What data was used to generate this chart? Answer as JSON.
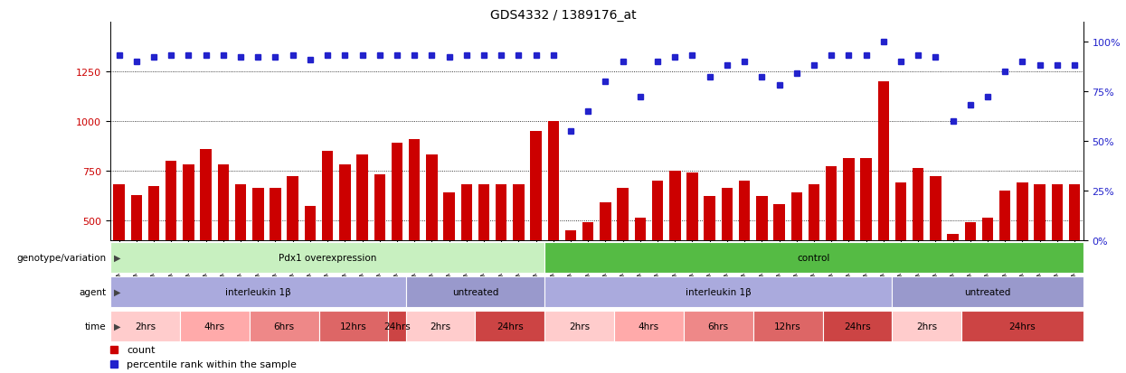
{
  "title": "GDS4332 / 1389176_at",
  "samples": [
    "GSM998740",
    "GSM998753",
    "GSM998766",
    "GSM998774",
    "GSM998729",
    "GSM998754",
    "GSM998767",
    "GSM998775",
    "GSM998741",
    "GSM998755",
    "GSM998768",
    "GSM998776",
    "GSM998730",
    "GSM998742",
    "GSM998747",
    "GSM998777",
    "GSM998731",
    "GSM998748",
    "GSM998756",
    "GSM998769",
    "GSM998732",
    "GSM998749",
    "GSM998757",
    "GSM998778",
    "GSM998733",
    "GSM998758",
    "GSM998770",
    "GSM998779",
    "GSM998734",
    "GSM998743",
    "GSM998759",
    "GSM998780",
    "GSM998735",
    "GSM998750",
    "GSM998760",
    "GSM998782",
    "GSM998744",
    "GSM998751",
    "GSM998761",
    "GSM998771",
    "GSM998736",
    "GSM998745",
    "GSM998762",
    "GSM998781",
    "GSM998737",
    "GSM998752",
    "GSM998763",
    "GSM998772",
    "GSM998738",
    "GSM998764",
    "GSM998773",
    "GSM998783",
    "GSM998739",
    "GSM998746",
    "GSM998765",
    "GSM998784"
  ],
  "counts": [
    680,
    625,
    670,
    800,
    780,
    858,
    780,
    680,
    660,
    660,
    720,
    570,
    850,
    780,
    830,
    730,
    890,
    910,
    830,
    640,
    680,
    680,
    680,
    680,
    950,
    1000,
    450,
    490,
    590,
    660,
    510,
    700,
    750,
    740,
    620,
    660,
    700,
    620,
    580,
    640,
    680,
    770,
    810,
    810,
    1200,
    690,
    760,
    720,
    430,
    490,
    510,
    650,
    690,
    680,
    680,
    680
  ],
  "percentiles": [
    93,
    90,
    92,
    93,
    93,
    93,
    93,
    92,
    92,
    92,
    93,
    91,
    93,
    93,
    93,
    93,
    93,
    93,
    93,
    92,
    93,
    93,
    93,
    93,
    93,
    93,
    55,
    65,
    80,
    90,
    72,
    90,
    92,
    93,
    82,
    88,
    90,
    82,
    78,
    84,
    88,
    93,
    93,
    93,
    100,
    90,
    93,
    92,
    60,
    68,
    72,
    85,
    90,
    88,
    88,
    88
  ],
  "ylim_left": [
    400,
    1500
  ],
  "ylim_right": [
    0,
    110
  ],
  "yticks_left": [
    500,
    750,
    1000,
    1250
  ],
  "yticks_right": [
    0,
    25,
    50,
    75,
    100
  ],
  "bar_color": "#cc0000",
  "dot_color": "#2222cc",
  "genotype_groups": [
    {
      "label": "Pdx1 overexpression",
      "start": 0,
      "end": 25,
      "color": "#c8f0c0"
    },
    {
      "label": "control",
      "start": 25,
      "end": 56,
      "color": "#55bb44"
    }
  ],
  "agent_groups": [
    {
      "label": "interleukin 1β",
      "start": 0,
      "end": 17,
      "color": "#aaaadd"
    },
    {
      "label": "untreated",
      "start": 17,
      "end": 25,
      "color": "#9999cc"
    },
    {
      "label": "interleukin 1β",
      "start": 25,
      "end": 45,
      "color": "#aaaadd"
    },
    {
      "label": "untreated",
      "start": 45,
      "end": 56,
      "color": "#9999cc"
    }
  ],
  "time_groups": [
    {
      "label": "2hrs",
      "start": 0,
      "end": 4,
      "color": "#ffcccc"
    },
    {
      "label": "4hrs",
      "start": 4,
      "end": 8,
      "color": "#ffaaaa"
    },
    {
      "label": "6hrs",
      "start": 8,
      "end": 12,
      "color": "#ee8888"
    },
    {
      "label": "12hrs",
      "start": 12,
      "end": 16,
      "color": "#dd6666"
    },
    {
      "label": "24hrs",
      "start": 16,
      "end": 17,
      "color": "#cc4444"
    },
    {
      "label": "2hrs",
      "start": 17,
      "end": 21,
      "color": "#ffcccc"
    },
    {
      "label": "24hrs",
      "start": 21,
      "end": 25,
      "color": "#cc4444"
    },
    {
      "label": "2hrs",
      "start": 25,
      "end": 29,
      "color": "#ffcccc"
    },
    {
      "label": "4hrs",
      "start": 29,
      "end": 33,
      "color": "#ffaaaa"
    },
    {
      "label": "6hrs",
      "start": 33,
      "end": 37,
      "color": "#ee8888"
    },
    {
      "label": "12hrs",
      "start": 37,
      "end": 41,
      "color": "#dd6666"
    },
    {
      "label": "24hrs",
      "start": 41,
      "end": 45,
      "color": "#cc4444"
    },
    {
      "label": "2hrs",
      "start": 45,
      "end": 49,
      "color": "#ffcccc"
    },
    {
      "label": "24hrs",
      "start": 49,
      "end": 56,
      "color": "#cc4444"
    }
  ],
  "row_labels": [
    "genotype/variation",
    "agent",
    "time"
  ],
  "legend_items": [
    {
      "label": "count",
      "color": "#cc0000"
    },
    {
      "label": "percentile rank within the sample",
      "color": "#2222cc"
    }
  ]
}
